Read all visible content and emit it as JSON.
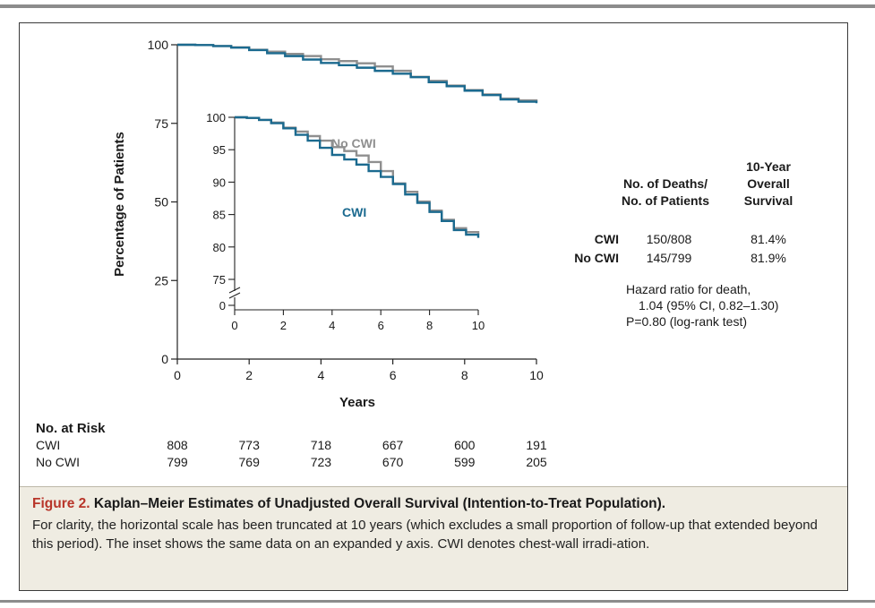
{
  "chart_data": [
    {
      "type": "line",
      "xlabel": "Years",
      "ylabel": "Percentage of Patients",
      "xlim": [
        0,
        10
      ],
      "ylim": [
        0,
        100
      ],
      "x_ticks": [
        "0",
        "2",
        "4",
        "6",
        "8",
        "10"
      ],
      "y_ticks": [
        "0",
        "25",
        "50",
        "75",
        "100"
      ],
      "series": [
        {
          "name": "CWI",
          "color": "#1b6a8f",
          "x": [
            0,
            0.5,
            1,
            1.5,
            2,
            2.5,
            3,
            3.5,
            4,
            4.5,
            5,
            5.5,
            6,
            6.5,
            7,
            7.5,
            8,
            8.5,
            9,
            9.5,
            10
          ],
          "y": [
            100,
            99.9,
            99.6,
            99.1,
            98.3,
            97.3,
            96.4,
            95.3,
            94.2,
            93.5,
            92.7,
            91.7,
            90.8,
            89.7,
            88.1,
            86.8,
            85.4,
            84.0,
            82.6,
            81.9,
            81.4
          ]
        },
        {
          "name": "No CWI",
          "color": "#8f8f8f",
          "x": [
            0,
            0.5,
            1,
            1.5,
            2,
            2.5,
            3,
            3.5,
            4,
            4.5,
            5,
            5.5,
            6,
            6.5,
            7,
            7.5,
            8,
            8.5,
            9,
            9.5,
            10
          ],
          "y": [
            100,
            99.9,
            99.6,
            99.2,
            98.4,
            97.8,
            97.1,
            96.4,
            95.4,
            94.8,
            94.1,
            93.1,
            91.7,
            89.8,
            88.5,
            87.0,
            85.6,
            84.2,
            82.9,
            82.3,
            81.9
          ]
        }
      ]
    },
    {
      "type": "line",
      "inset": true,
      "xlim": [
        0,
        10
      ],
      "ylim": [
        75,
        100
      ],
      "y_axis_break": true,
      "x_ticks": [
        "0",
        "2",
        "4",
        "6",
        "8",
        "10"
      ],
      "y_ticks": [
        "0",
        "75",
        "80",
        "85",
        "90",
        "95",
        "100"
      ],
      "labels": {
        "no_cwi": "No CWI",
        "cwi": "CWI"
      }
    }
  ],
  "stats_table": {
    "deaths_header_1": "No. of Deaths/",
    "deaths_header_2": "No. of Patients",
    "survival_header_1": "10-Year",
    "survival_header_2": "Overall",
    "survival_header_3": "Survival",
    "rows": [
      {
        "group": "CWI",
        "deaths": "150/808",
        "survival": "81.4%"
      },
      {
        "group": "No CWI",
        "deaths": "145/799",
        "survival": "81.9%"
      }
    ],
    "hazard_line_1": "Hazard ratio for death,",
    "hazard_line_2": "1.04 (95% CI, 0.82–1.30)",
    "pvalue_line": "P=0.80 (log-rank test)"
  },
  "risk_table": {
    "title": "No. at Risk",
    "rows": [
      {
        "label": "CWI",
        "values": [
          "808",
          "773",
          "718",
          "667",
          "600",
          "191"
        ]
      },
      {
        "label": "No CWI",
        "values": [
          "799",
          "769",
          "723",
          "670",
          "599",
          "205"
        ]
      }
    ]
  },
  "caption": {
    "label": "Figure 2.",
    "title": " Kaplan–Meier Estimates of Unadjusted Overall Survival (Intention-to-Treat Population).",
    "body": "For clarity, the horizontal scale has been truncated at 10 years (which excludes a small proportion of follow-up that extended beyond this period). The inset shows the same data on an expanded y axis. CWI denotes chest-wall irradi-ation."
  }
}
